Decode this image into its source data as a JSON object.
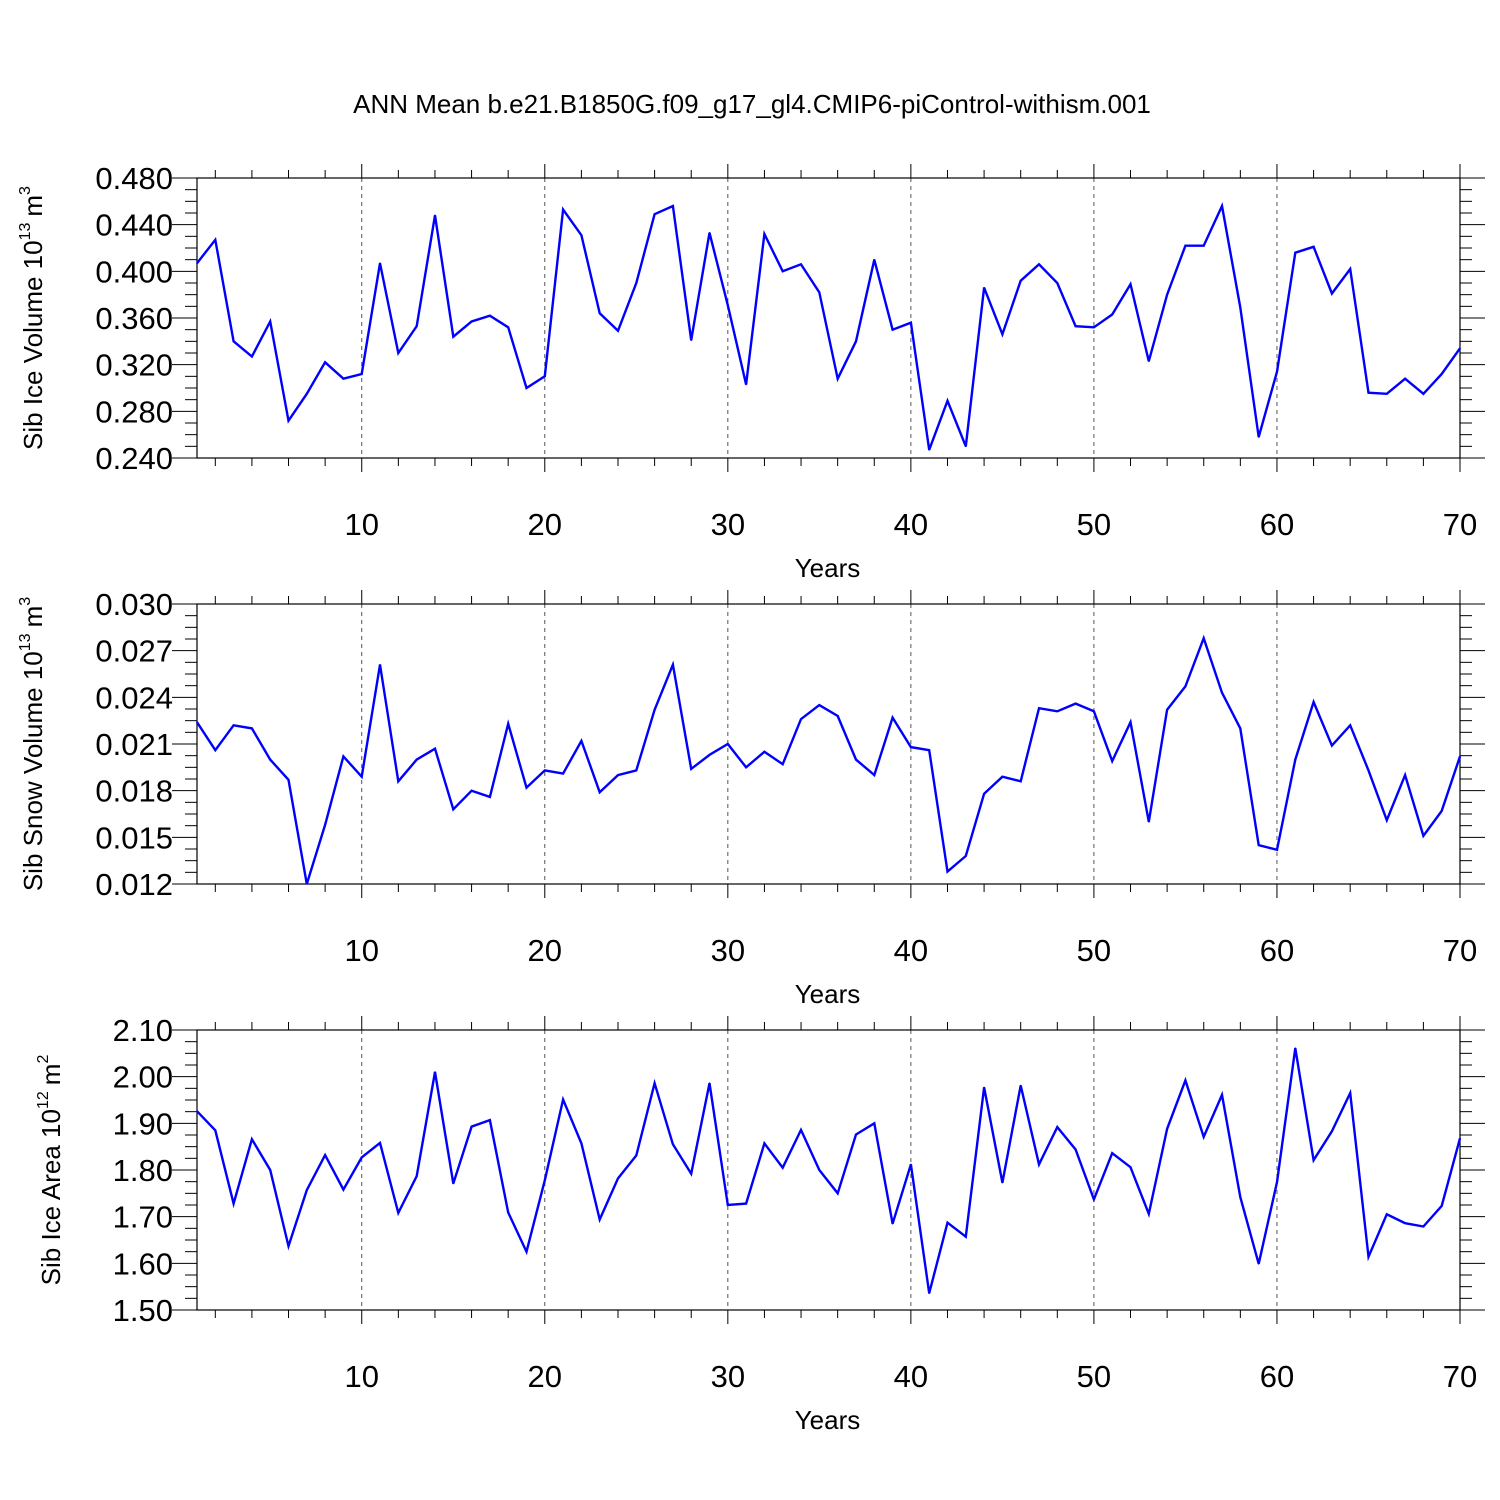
{
  "figure_title": "ANN Mean b.e21.B1850G.f09_g17_gl4.CMIP6-piControl-withism.001",
  "colors": {
    "line": "#0000ff",
    "axis": "#000000",
    "grid": "#555555"
  },
  "chart_data": [
    {
      "type": "line",
      "title": "",
      "xlabel": "Years",
      "ylabel": {
        "text": "Sib Ice Volume 10",
        "exponent": "13",
        "unit": "m",
        "unit_exponent": "3"
      },
      "xlim": [
        1,
        70
      ],
      "ylim": [
        0.24,
        0.48
      ],
      "xticks": [
        "10",
        "20",
        "30",
        "40",
        "50",
        "60",
        "70"
      ],
      "yticks": [
        "0.240",
        "0.280",
        "0.320",
        "0.360",
        "0.400",
        "0.440",
        "0.480"
      ],
      "grid": "vertical dashed at x ticks",
      "x": [
        1,
        2,
        3,
        4,
        5,
        6,
        7,
        8,
        9,
        10,
        11,
        12,
        13,
        14,
        15,
        16,
        17,
        18,
        19,
        20,
        21,
        22,
        23,
        24,
        25,
        26,
        27,
        28,
        29,
        30,
        31,
        32,
        33,
        34,
        35,
        36,
        37,
        38,
        39,
        40,
        41,
        42,
        43,
        44,
        45,
        46,
        47,
        48,
        49,
        50,
        51,
        52,
        53,
        54,
        55,
        56,
        57,
        58,
        59,
        60,
        61,
        62,
        63,
        64,
        65,
        66,
        67,
        68,
        69,
        70
      ],
      "series": [
        {
          "values": [
            0.407,
            0.427,
            0.34,
            0.327,
            0.357,
            0.272,
            0.295,
            0.322,
            0.308,
            0.312,
            0.407,
            0.33,
            0.353,
            0.448,
            0.344,
            0.357,
            0.362,
            0.352,
            0.3,
            0.31,
            0.453,
            0.431,
            0.364,
            0.349,
            0.39,
            0.449,
            0.456,
            0.341,
            0.433,
            0.371,
            0.303,
            0.432,
            0.4,
            0.406,
            0.382,
            0.308,
            0.34,
            0.41,
            0.35,
            0.356,
            0.247,
            0.289,
            0.25,
            0.386,
            0.346,
            0.392,
            0.406,
            0.39,
            0.353,
            0.352,
            0.363,
            0.389,
            0.323,
            0.38,
            0.422,
            0.422,
            0.456,
            0.369,
            0.258,
            0.314,
            0.416,
            0.421,
            0.381,
            0.402,
            0.296,
            0.295,
            0.308,
            0.295,
            0.312,
            0.334
          ]
        }
      ]
    },
    {
      "type": "line",
      "title": "",
      "xlabel": "Years",
      "ylabel": {
        "text": "Sib Snow Volume 10",
        "exponent": "13",
        "unit": "m",
        "unit_exponent": "3"
      },
      "xlim": [
        1,
        70
      ],
      "ylim": [
        0.012,
        0.03
      ],
      "xticks": [
        "10",
        "20",
        "30",
        "40",
        "50",
        "60",
        "70"
      ],
      "yticks": [
        "0.012",
        "0.015",
        "0.018",
        "0.021",
        "0.024",
        "0.027",
        "0.030"
      ],
      "grid": "vertical dashed at x ticks",
      "x": [
        1,
        2,
        3,
        4,
        5,
        6,
        7,
        8,
        9,
        10,
        11,
        12,
        13,
        14,
        15,
        16,
        17,
        18,
        19,
        20,
        21,
        22,
        23,
        24,
        25,
        26,
        27,
        28,
        29,
        30,
        31,
        32,
        33,
        34,
        35,
        36,
        37,
        38,
        39,
        40,
        41,
        42,
        43,
        44,
        45,
        46,
        47,
        48,
        49,
        50,
        51,
        52,
        53,
        54,
        55,
        56,
        57,
        58,
        59,
        60,
        61,
        62,
        63,
        64,
        65,
        66,
        67,
        68,
        69,
        70
      ],
      "series": [
        {
          "values": [
            0.0224,
            0.0206,
            0.0222,
            0.022,
            0.02,
            0.0187,
            0.012,
            0.0158,
            0.0202,
            0.0189,
            0.0261,
            0.0186,
            0.02,
            0.0207,
            0.0168,
            0.018,
            0.0176,
            0.0223,
            0.0182,
            0.0193,
            0.0191,
            0.0212,
            0.0179,
            0.019,
            0.0193,
            0.0232,
            0.0261,
            0.0194,
            0.0203,
            0.021,
            0.0195,
            0.0205,
            0.0197,
            0.0226,
            0.0235,
            0.0228,
            0.02,
            0.019,
            0.0227,
            0.0208,
            0.0206,
            0.0128,
            0.0138,
            0.0178,
            0.0189,
            0.0186,
            0.0233,
            0.0231,
            0.0236,
            0.0231,
            0.0199,
            0.0224,
            0.016,
            0.0232,
            0.0247,
            0.0278,
            0.0243,
            0.022,
            0.0145,
            0.0142,
            0.02,
            0.0237,
            0.0209,
            0.0222,
            0.0193,
            0.0161,
            0.019,
            0.0151,
            0.0167,
            0.0202
          ]
        }
      ]
    },
    {
      "type": "line",
      "title": "",
      "xlabel": "Years",
      "ylabel": {
        "text": "Sib Ice Area 10",
        "exponent": "12",
        "unit": "m",
        "unit_exponent": "2"
      },
      "xlim": [
        1,
        70
      ],
      "ylim": [
        1.5,
        2.1
      ],
      "xticks": [
        "10",
        "20",
        "30",
        "40",
        "50",
        "60",
        "70"
      ],
      "yticks": [
        "1.50",
        "1.60",
        "1.70",
        "1.80",
        "1.90",
        "2.00",
        "2.10"
      ],
      "grid": "vertical dashed at x ticks",
      "x": [
        1,
        2,
        3,
        4,
        5,
        6,
        7,
        8,
        9,
        10,
        11,
        12,
        13,
        14,
        15,
        16,
        17,
        18,
        19,
        20,
        21,
        22,
        23,
        24,
        25,
        26,
        27,
        28,
        29,
        30,
        31,
        32,
        33,
        34,
        35,
        36,
        37,
        38,
        39,
        40,
        41,
        42,
        43,
        44,
        45,
        46,
        47,
        48,
        49,
        50,
        51,
        52,
        53,
        54,
        55,
        56,
        57,
        58,
        59,
        60,
        61,
        62,
        63,
        64,
        65,
        66,
        67,
        68,
        69,
        70
      ],
      "series": [
        {
          "values": [
            1.926,
            1.885,
            1.728,
            1.866,
            1.8,
            1.637,
            1.757,
            1.832,
            1.758,
            1.827,
            1.858,
            1.708,
            1.787,
            2.01,
            1.771,
            1.893,
            1.907,
            1.709,
            1.625,
            1.778,
            1.951,
            1.857,
            1.694,
            1.782,
            1.831,
            1.986,
            1.855,
            1.792,
            1.986,
            1.725,
            1.728,
            1.857,
            1.805,
            1.886,
            1.8,
            1.75,
            1.876,
            1.9,
            1.685,
            1.812,
            1.536,
            1.687,
            1.657,
            1.977,
            1.773,
            1.981,
            1.812,
            1.892,
            1.844,
            1.737,
            1.836,
            1.806,
            1.706,
            1.888,
            1.992,
            1.871,
            1.961,
            1.742,
            1.599,
            1.774,
            2.061,
            1.821,
            1.883,
            1.965,
            1.614,
            1.705,
            1.686,
            1.679,
            1.723,
            1.868
          ]
        }
      ]
    }
  ]
}
